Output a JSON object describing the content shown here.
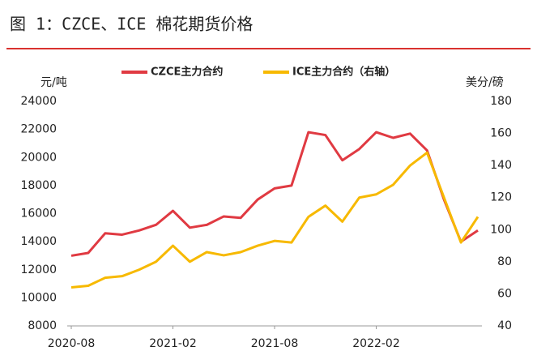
{
  "chart_data": {
    "type": "line",
    "title": "图 1：CZCE、ICE 棉花期货价格",
    "y_label": "元/吨",
    "y2_label": "美分/磅",
    "x": [
      "2020-08",
      "2020-09",
      "2020-10",
      "2020-11",
      "2020-12",
      "2021-01",
      "2021-02",
      "2021-03",
      "2021-04",
      "2021-05",
      "2021-06",
      "2021-07",
      "2021-08",
      "2021-09",
      "2021-10",
      "2021-11",
      "2021-12",
      "2022-01",
      "2022-02",
      "2022-03",
      "2022-04",
      "2022-05",
      "2022-06",
      "2022-07",
      "2022-08"
    ],
    "xlim": [
      "2020-08",
      "2022-08"
    ],
    "xticks": [
      "2020-08",
      "2021-02",
      "2021-08",
      "2022-02"
    ],
    "ylim": [
      8000,
      24000
    ],
    "yticks": [
      8000,
      10000,
      12000,
      14000,
      16000,
      18000,
      20000,
      22000,
      24000
    ],
    "y2lim": [
      40,
      180
    ],
    "y2ticks": [
      40,
      60,
      80,
      100,
      120,
      140,
      160,
      180
    ],
    "series": [
      {
        "name": "CZCE主力合约",
        "color": "#e03a42",
        "values": [
          13000,
          13200,
          14600,
          14500,
          14800,
          15200,
          16200,
          15000,
          15200,
          15800,
          15700,
          17000,
          17800,
          18000,
          21800,
          21600,
          19800,
          20600,
          21800,
          21400,
          21700,
          20500,
          17000,
          14000,
          14800
        ]
      },
      {
        "name": "ICE主力合约（右轴）",
        "color": "#f7b900",
        "axis": "y2",
        "values": [
          64,
          65,
          70,
          71,
          75,
          80,
          90,
          80,
          86,
          84,
          86,
          90,
          93,
          92,
          108,
          115,
          105,
          120,
          122,
          128,
          140,
          148,
          120,
          92,
          108
        ]
      }
    ]
  }
}
